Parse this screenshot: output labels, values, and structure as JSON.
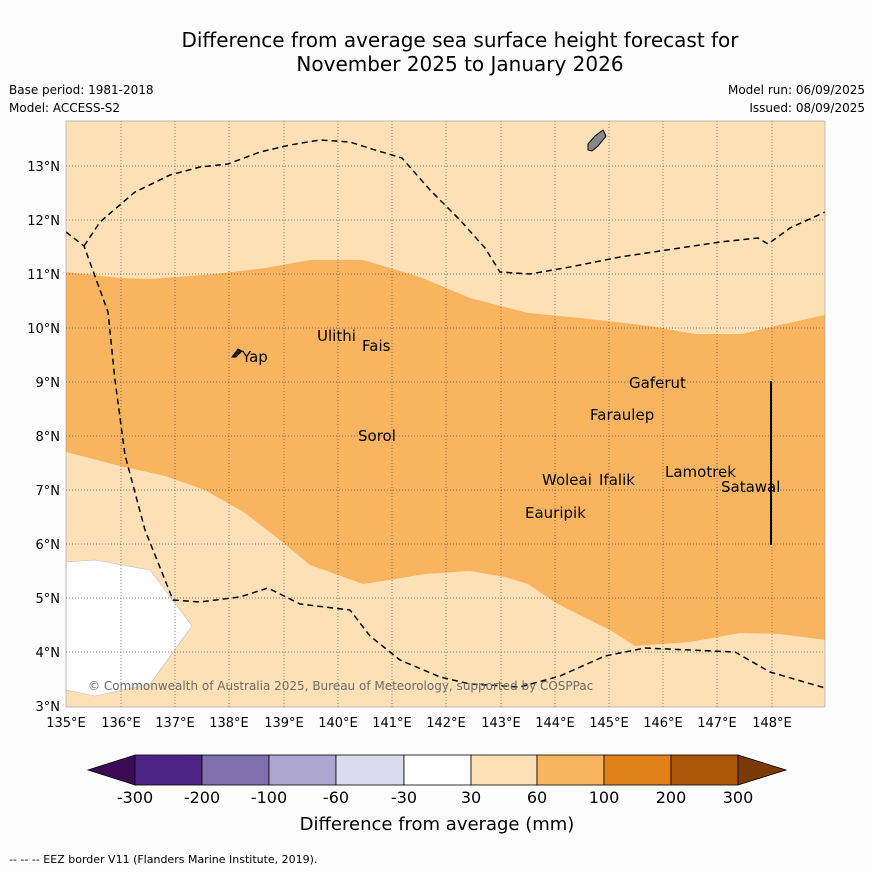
{
  "title_line1": "Difference from average sea surface height forecast for",
  "title_line2": "November 2025 to January 2026",
  "base_period": "Base period: 1981-2018",
  "model": "Model: ACCESS-S2",
  "model_run": "Model run: 06/09/2025",
  "issued": "Issued: 08/09/2025",
  "copyright": "© Commonwealth of Australia 2025, Bureau of Meteorology, supported by COSPPac",
  "lat_labels": [
    "3°N",
    "4°N",
    "5°N",
    "6°N",
    "7°N",
    "8°N",
    "9°N",
    "10°N",
    "11°N",
    "12°N",
    "13°N"
  ],
  "lon_labels": [
    "135°E",
    "136°E",
    "137°E",
    "138°E",
    "139°E",
    "140°E",
    "141°E",
    "142°E",
    "143°E",
    "144°E",
    "145°E",
    "146°E",
    "147°E",
    "148°E"
  ],
  "places": [
    "Yap",
    "Ulithi",
    "Fais",
    "Sorol",
    "Gaferut",
    "Faraulep",
    "Woleai",
    "Ifalik",
    "Eauripik",
    "Lamotrek",
    "Satawal"
  ],
  "colorbar": {
    "ticks": [
      "-300",
      "-200",
      "-100",
      "-60",
      "-30",
      "30",
      "60",
      "100",
      "200",
      "300"
    ],
    "label": "Difference from average (mm)",
    "colors": [
      "#3d0a55",
      "#4e2386",
      "#7f6fad",
      "#ada7cf",
      "#dadbec",
      "#ffffff",
      "#fde0b6",
      "#f9b45f",
      "#e0811a",
      "#ab5509",
      "#7b3a05"
    ]
  },
  "footnote": "-- -- -- EEZ border V11 (Flanders Marine Institute, 2019)."
}
